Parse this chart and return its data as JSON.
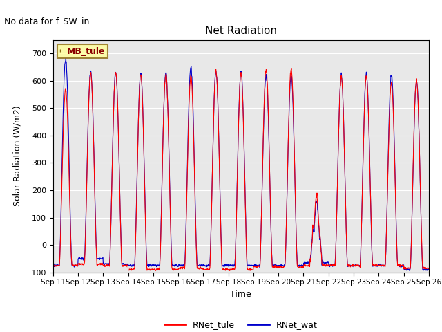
{
  "title": "Net Radiation",
  "xlabel": "Time",
  "ylabel": "Solar Radiation (W/m2)",
  "annotation": "No data for f_SW_in",
  "legend_label": "MB_tule",
  "line1_label": "RNet_tule",
  "line2_label": "RNet_wat",
  "line1_color": "#FF0000",
  "line2_color": "#0000CC",
  "ylim": [
    -100,
    750
  ],
  "yticks": [
    -100,
    0,
    100,
    200,
    300,
    400,
    500,
    600,
    700
  ],
  "bg_color": "#E8E8E8",
  "fig_bg": "#FFFFFF",
  "n_days": 15,
  "daily_peaks_tule": [
    570,
    630,
    630,
    625,
    625,
    620,
    635,
    630,
    640,
    640,
    190,
    615,
    615,
    590,
    600
  ],
  "daily_peaks_wat": [
    680,
    635,
    630,
    630,
    630,
    650,
    635,
    635,
    620,
    620,
    160,
    620,
    625,
    620,
    600
  ],
  "daily_mins_tule": [
    -75,
    -70,
    -75,
    -90,
    -90,
    -85,
    -90,
    -90,
    -80,
    -80,
    -75,
    -75,
    -75,
    -75,
    -85
  ],
  "daily_mins_wat": [
    -75,
    -50,
    -70,
    -75,
    -75,
    -75,
    -75,
    -75,
    -75,
    -75,
    -65,
    -75,
    -75,
    -75,
    -90
  ],
  "xticklabels": [
    "Sep 11",
    "Sep 12",
    "Sep 13",
    "Sep 14",
    "Sep 15",
    "Sep 16",
    "Sep 17",
    "Sep 18",
    "Sep 19",
    "Sep 20",
    "Sep 21",
    "Sep 22",
    "Sep 23",
    "Sep 24",
    "Sep 25",
    "Sep 26"
  ]
}
